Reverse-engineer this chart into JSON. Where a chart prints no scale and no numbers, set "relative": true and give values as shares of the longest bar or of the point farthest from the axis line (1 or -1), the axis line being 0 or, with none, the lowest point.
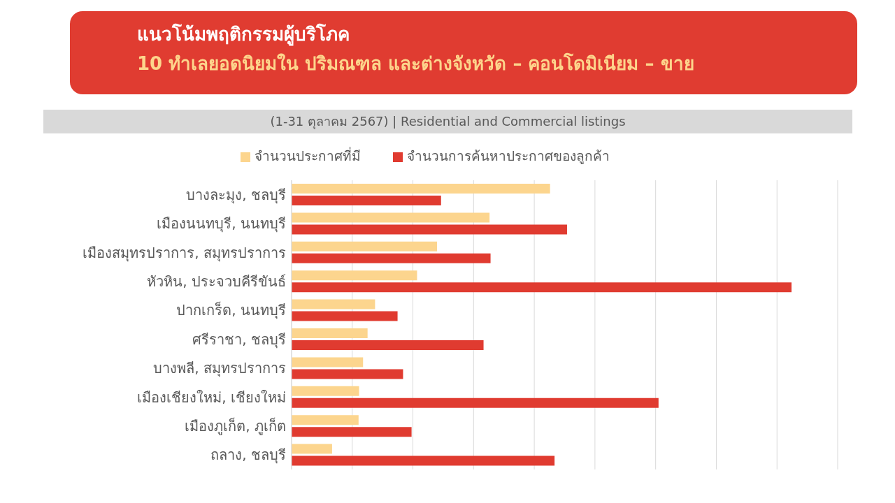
{
  "chart_data": {
    "type": "bar",
    "orientation": "horizontal",
    "relative": true,
    "title": "แนวโน้มพฤติกรรมผู้บริโภค",
    "subtitle": "10 ทำเลยอดนิยมใน ปริมณฑล และต่างจังหวัด – คอนโดมิเนียม – ขาย",
    "annotations": [
      "(1-31 ตุลาคม 2567) | Residential and Commercial listings"
    ],
    "categories": [
      "บางละมุง, ชลบุรี",
      "เมืองนนทบุรี, นนทบุรี",
      "เมืองสมุทรปราการ, สมุทรปราการ",
      "หัวหิน, ประจวบคีรีขันธ์",
      "ปากเกร็ด, นนทบุรี",
      "ศรีราชา, ชลบุรี",
      "บางพลี, สมุทรปราการ",
      "เมืองเชียงใหม่, เชียงใหม่",
      "เมืองภูเก็ต, ภูเก็ต",
      "ถลาง, ชลบุรี"
    ],
    "series": [
      {
        "name": "จำนวนประกาศที่มี",
        "color": "#fcd58e",
        "values": [
          0.517,
          0.396,
          0.291,
          0.251,
          0.167,
          0.152,
          0.143,
          0.135,
          0.134,
          0.081
        ]
      },
      {
        "name": "จำนวนการค้นหาประกาศของลูกค้า",
        "color": "#e03b30",
        "values": [
          0.299,
          0.551,
          0.398,
          1,
          0.212,
          0.384,
          0.223,
          0.734,
          0.24,
          0.526
        ]
      }
    ],
    "grid": "x",
    "legend": "top"
  }
}
